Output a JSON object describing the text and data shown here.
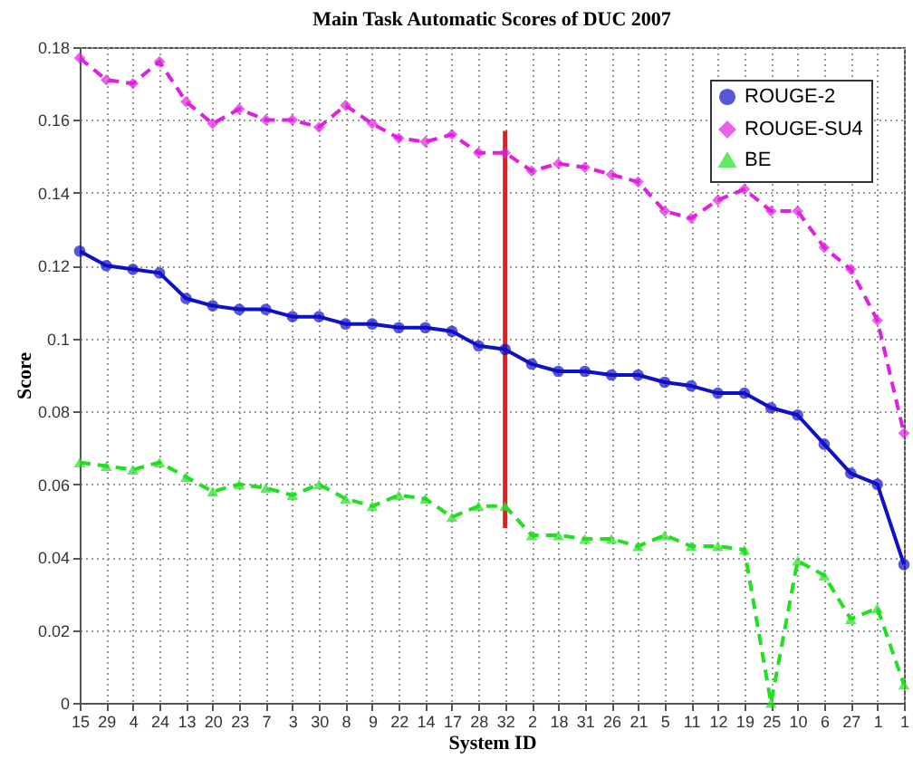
{
  "chart_data": {
    "type": "line",
    "title": "Main Task Automatic Scores of DUC 2007",
    "xlabel": "System ID",
    "ylabel": "Score",
    "categories": [
      "15",
      "29",
      "4",
      "24",
      "13",
      "20",
      "23",
      "7",
      "3",
      "30",
      "8",
      "9",
      "22",
      "14",
      "17",
      "28",
      "32",
      "2",
      "18",
      "31",
      "26",
      "21",
      "5",
      "11",
      "12",
      "19",
      "25",
      "10",
      "6",
      "27",
      "1",
      "1"
    ],
    "ylim": [
      0,
      0.18
    ],
    "yticks": [
      0,
      0.02,
      0.04,
      0.06,
      0.08,
      0.1,
      0.12,
      0.14,
      0.16,
      0.18
    ],
    "grid": true,
    "legend": "top right",
    "series": [
      {
        "name": "ROUGE-2",
        "color": "#1010c8",
        "marker": "circle",
        "line_style": "solid",
        "values": [
          0.124,
          0.12,
          0.119,
          0.118,
          0.111,
          0.109,
          0.108,
          0.108,
          0.106,
          0.106,
          0.104,
          0.104,
          0.103,
          0.103,
          0.102,
          0.098,
          0.097,
          0.093,
          0.091,
          0.091,
          0.09,
          0.09,
          0.088,
          0.087,
          0.085,
          0.085,
          0.081,
          0.079,
          0.071,
          0.063,
          0.06,
          0.038
        ]
      },
      {
        "name": "ROUGE-SU4",
        "color": "#e020e0",
        "marker": "diamond",
        "line_style": "dashed",
        "values": [
          0.177,
          0.171,
          0.17,
          0.176,
          0.165,
          0.159,
          0.163,
          0.16,
          0.16,
          0.158,
          0.164,
          0.159,
          0.155,
          0.154,
          0.156,
          0.151,
          0.151,
          0.146,
          0.148,
          0.147,
          0.145,
          0.143,
          0.135,
          0.133,
          0.138,
          0.141,
          0.135,
          0.135,
          0.125,
          0.119,
          0.105,
          0.074
        ]
      },
      {
        "name": "BE",
        "color": "#20e020",
        "marker": "triangle",
        "line_style": "dashed",
        "values": [
          0.066,
          0.065,
          0.064,
          0.066,
          0.062,
          0.058,
          0.06,
          0.059,
          0.057,
          0.06,
          0.056,
          0.054,
          0.057,
          0.056,
          0.051,
          0.054,
          0.054,
          0.046,
          0.046,
          0.045,
          0.045,
          0.043,
          0.046,
          0.043,
          0.043,
          0.042,
          0.0,
          0.039,
          0.035,
          0.023,
          0.026,
          0.005
        ]
      },
      {
        "color": "#e02020",
        "line_style": "solid",
        "x": [
          "32",
          "32"
        ],
        "values": [
          0.048,
          0.157
        ]
      }
    ]
  }
}
